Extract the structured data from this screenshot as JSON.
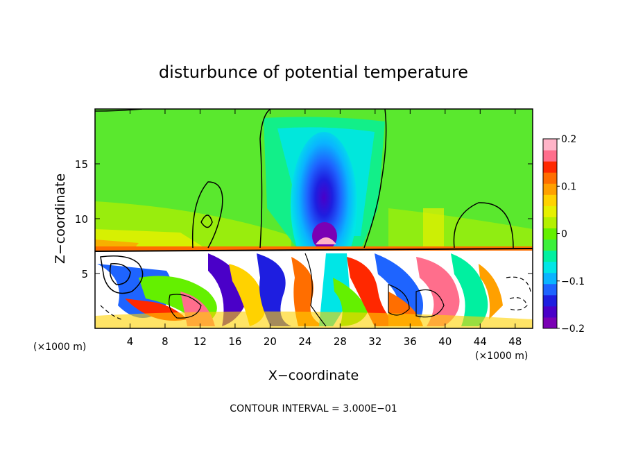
{
  "chart_data": {
    "type": "heatmap",
    "title": "disturbunce of potential temperature",
    "xlabel": "X−coordinate",
    "ylabel": "Z−coordinate",
    "x_unit": "(×1000 m)",
    "x_ticks": [
      "4",
      "8",
      "12",
      "16",
      "20",
      "24",
      "28",
      "32",
      "36",
      "40",
      "44",
      "48"
    ],
    "y_ticks": [
      "5",
      "10",
      "15"
    ],
    "xlim": [
      0,
      50
    ],
    "ylim": [
      0,
      20
    ],
    "colorbar": {
      "tick_labels": [
        "0.2",
        "0.1",
        "0",
        "−0.1",
        "−0.2"
      ],
      "range": [
        -0.2,
        0.2
      ]
    },
    "footnote": "CONTOUR INTERVAL = 3.000E−01"
  },
  "colors": {
    "background_green": "#5ae82e",
    "scale": [
      "#7a00b4",
      "#4a00c8",
      "#1e1ee0",
      "#1e64ff",
      "#0ab4ff",
      "#00e6e6",
      "#00f0a0",
      "#3cf03c",
      "#64f000",
      "#b4f000",
      "#e6f000",
      "#ffd200",
      "#ffa000",
      "#ff6e00",
      "#ff2800",
      "#ff6e8c",
      "#ffb4c8"
    ]
  }
}
